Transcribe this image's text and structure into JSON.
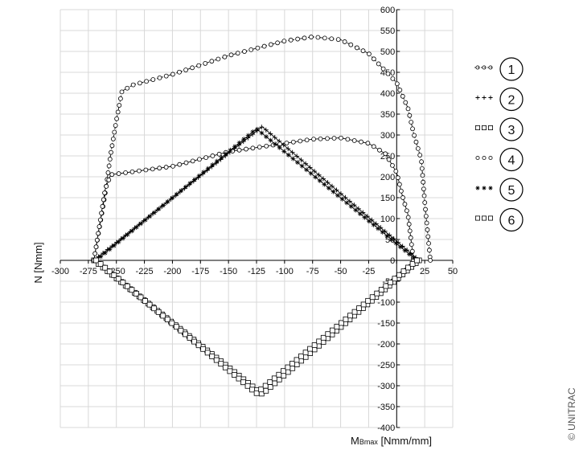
{
  "chart_data": {
    "type": "line",
    "xlabel_main": "M",
    "xlabel_sub": "Bmax",
    "xlabel_unit": " [Nmm/mm]",
    "ylabel": "N [Nmm]",
    "xlim": [
      -300,
      50
    ],
    "ylim": [
      -400,
      600
    ],
    "x_ticks": [
      -300,
      -275,
      -250,
      -225,
      -200,
      -175,
      -150,
      -125,
      -100,
      -75,
      -50,
      -25,
      0,
      25,
      50
    ],
    "y_ticks": [
      600,
      550,
      500,
      450,
      400,
      350,
      300,
      250,
      200,
      150,
      100,
      50,
      0,
      -50,
      -100,
      -150,
      -200,
      -250,
      -300,
      -350,
      -400
    ],
    "grid": true,
    "legend_position": "right",
    "copyright": "© UNITRAC",
    "series": [
      {
        "legend": "1",
        "marker": "circle",
        "line": "dashed",
        "legend_marker_label": "ooo",
        "points": [
          [
            -270,
            0
          ],
          [
            -265,
            80
          ],
          [
            -260,
            160
          ],
          [
            -255,
            255
          ],
          [
            -250,
            335
          ],
          [
            -245,
            405
          ],
          [
            -235,
            420
          ],
          [
            -200,
            445
          ],
          [
            -150,
            490
          ],
          [
            -100,
            525
          ],
          [
            -75,
            535
          ],
          [
            -50,
            528
          ],
          [
            -25,
            495
          ],
          [
            0,
            425
          ],
          [
            10,
            365
          ],
          [
            15,
            305
          ],
          [
            22,
            240
          ],
          [
            25,
            140
          ],
          [
            30,
            0
          ]
        ]
      },
      {
        "legend": "2",
        "marker": "plus",
        "line": "solid",
        "legend_marker_label": "+++",
        "points": [
          [
            -270,
            0
          ],
          [
            -120,
            320
          ],
          [
            20,
            0
          ]
        ]
      },
      {
        "legend": "3",
        "marker": "square",
        "line": "solid",
        "legend_marker_label": "□□□",
        "points": [
          [
            -270,
            0
          ],
          [
            -120,
            -320
          ],
          [
            20,
            0
          ]
        ]
      },
      {
        "legend": "4",
        "marker": "circle",
        "line": "solid",
        "legend_marker_label": "ooo",
        "points": [
          [
            -270,
            0
          ],
          [
            -265,
            85
          ],
          [
            -260,
            170
          ],
          [
            -255,
            205
          ],
          [
            -200,
            225
          ],
          [
            -150,
            260
          ],
          [
            -100,
            280
          ],
          [
            -75,
            290
          ],
          [
            -50,
            293
          ],
          [
            -25,
            280
          ],
          [
            -10,
            255
          ],
          [
            0,
            210
          ],
          [
            5,
            155
          ],
          [
            10,
            110
          ],
          [
            15,
            0
          ]
        ]
      },
      {
        "legend": "5",
        "marker": "star",
        "line": "solid",
        "legend_marker_label": "+++",
        "points": [
          [
            -268,
            0
          ],
          [
            -125,
            315
          ],
          [
            18,
            0
          ]
        ]
      },
      {
        "legend": "6",
        "marker": "square",
        "line": "solid",
        "legend_marker_label": "□□□",
        "points": [
          [
            -268,
            0
          ],
          [
            -125,
            -318
          ],
          [
            18,
            0
          ]
        ]
      }
    ]
  }
}
